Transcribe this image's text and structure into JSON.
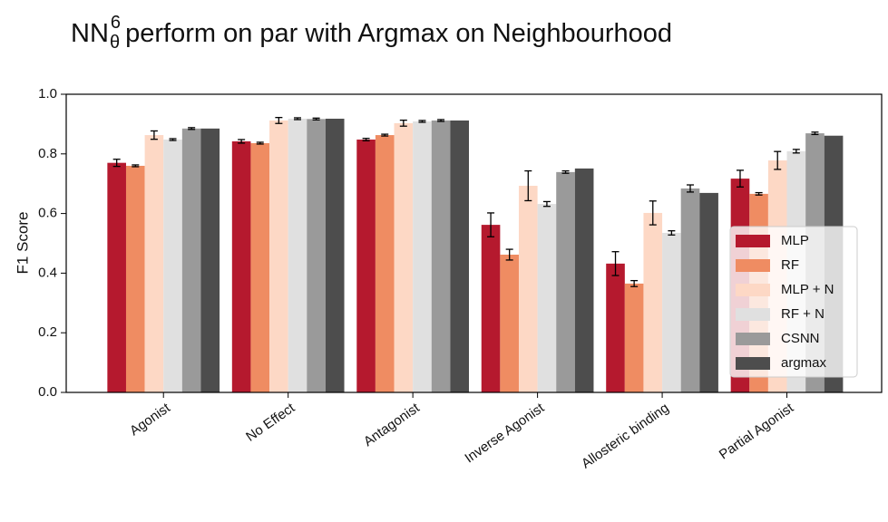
{
  "chart_data": {
    "type": "bar",
    "title": {
      "base": "NN",
      "sup": "6",
      "sub": "θ",
      "rest": "perform on par with Argmax on Neighbourhood"
    },
    "y_label": "F1 Score",
    "categories": [
      "Agonist",
      "No Effect",
      "Antagonist",
      "Inverse Agonist",
      "Allosteric binding",
      "Partial Agonist"
    ],
    "series": [
      {
        "name": "MLP",
        "color": "#b5192e",
        "values": [
          0.77,
          0.842,
          0.848,
          0.562,
          0.432,
          0.717
        ],
        "errors": [
          0.012,
          0.006,
          0.004,
          0.04,
          0.04,
          0.028
        ]
      },
      {
        "name": "RF",
        "color": "#ef8c62",
        "values": [
          0.76,
          0.836,
          0.863,
          0.462,
          0.365,
          0.666
        ],
        "errors": [
          0.003,
          0.003,
          0.003,
          0.018,
          0.01,
          0.004
        ]
      },
      {
        "name": "MLP + N",
        "color": "#fdd8c5",
        "values": [
          0.863,
          0.912,
          0.903,
          0.693,
          0.602,
          0.778
        ],
        "errors": [
          0.014,
          0.01,
          0.01,
          0.05,
          0.04,
          0.03
        ]
      },
      {
        "name": "RF + N",
        "color": "#e0e0e0",
        "values": [
          0.848,
          0.918,
          0.909,
          0.632,
          0.535,
          0.809
        ],
        "errors": [
          0.003,
          0.003,
          0.003,
          0.008,
          0.007,
          0.006
        ]
      },
      {
        "name": "CSNN",
        "color": "#9a9a9a",
        "values": [
          0.885,
          0.917,
          0.912,
          0.739,
          0.684,
          0.869
        ],
        "errors": [
          0.003,
          0.003,
          0.003,
          0.004,
          0.012,
          0.004
        ]
      },
      {
        "name": "argmax",
        "color": "#4d4d4d",
        "values": [
          0.885,
          0.918,
          0.912,
          0.751,
          0.669,
          0.861
        ]
      }
    ],
    "ylim": [
      0,
      1
    ],
    "yticks": [
      {
        "value": 0,
        "label": "0.0"
      },
      0.2,
      0.4,
      0.6,
      0.8,
      {
        "value": 1,
        "label": "1.0"
      }
    ],
    "legend": "lower right"
  }
}
